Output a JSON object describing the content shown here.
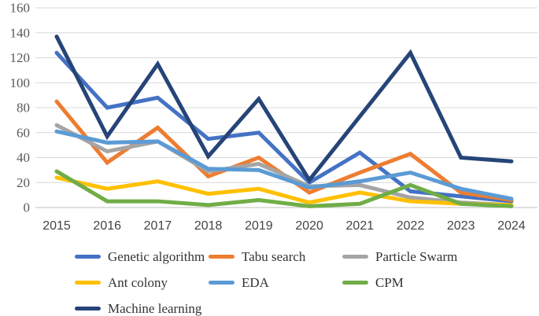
{
  "chart_data": {
    "type": "line",
    "title": "",
    "xlabel": "",
    "ylabel": "",
    "categories": [
      "2015",
      "2016",
      "2017",
      "2018",
      "2019",
      "2020",
      "2021",
      "2022",
      "2023",
      "2024"
    ],
    "series": [
      {
        "name": "Genetic algorithm",
        "color": "#4472C4",
        "values": [
          124,
          80,
          88,
          55,
          60,
          20,
          44,
          13,
          9,
          5
        ]
      },
      {
        "name": "Tabu search",
        "color": "#ED7D31",
        "values": [
          85,
          36,
          64,
          25,
          40,
          12,
          28,
          43,
          12,
          6
        ]
      },
      {
        "name": "Particle Swarm",
        "color": "#A5A5A5",
        "values": [
          66,
          45,
          53,
          29,
          35,
          17,
          18,
          8,
          4,
          2
        ]
      },
      {
        "name": "Ant colony",
        "color": "#FFC000",
        "values": [
          24,
          15,
          21,
          11,
          15,
          4,
          12,
          5,
          3,
          2
        ]
      },
      {
        "name": "EDA",
        "color": "#5B9BD5",
        "values": [
          61,
          52,
          53,
          31,
          30,
          16,
          21,
          28,
          15,
          7
        ]
      },
      {
        "name": "CPM",
        "color": "#70AD47",
        "values": [
          29,
          5,
          5,
          2,
          6,
          1,
          3,
          18,
          3,
          1
        ]
      },
      {
        "name": "Machine learning",
        "color": "#264478",
        "values": [
          137,
          57,
          115,
          41,
          87,
          22,
          73,
          124,
          40,
          37
        ]
      }
    ],
    "ylim": [
      0,
      160
    ],
    "ytick_step": 20,
    "ytick_labels": [
      "0",
      "20",
      "40",
      "60",
      "80",
      "100",
      "120",
      "140",
      "160"
    ],
    "grid": true,
    "gridline_color": "#D9D9D9",
    "baseline_color": "#BFBFBF",
    "legend_position": "bottom",
    "legend_columns": 3
  }
}
